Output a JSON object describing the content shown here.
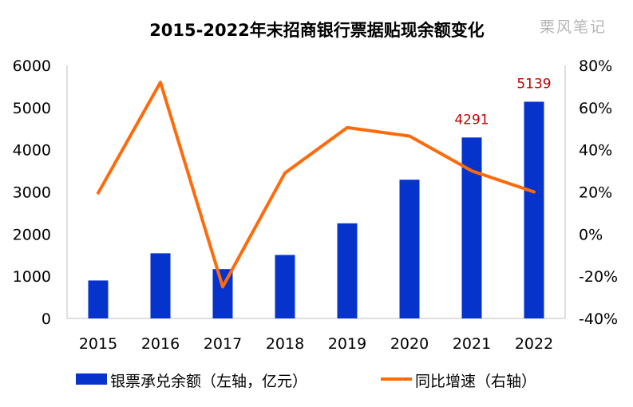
{
  "watermark": "栗风笔记",
  "chart_data": {
    "type": "bar",
    "title": "2015-2022年末招商银行票据贴现余额变化",
    "categories": [
      "2015",
      "2016",
      "2017",
      "2018",
      "2019",
      "2020",
      "2021",
      "2022"
    ],
    "series": [
      {
        "name": "银票承兑余额（左轴，亿元）",
        "type": "bar",
        "axis": "left",
        "color": "#0533cc",
        "values": [
          900,
          1545,
          1170,
          1505,
          2255,
          3290,
          4291,
          5139
        ]
      },
      {
        "name": "同比增速（右轴）",
        "type": "line",
        "axis": "right",
        "color": "#ff6a0a",
        "values": [
          0.195,
          0.72,
          -0.25,
          0.29,
          0.505,
          0.465,
          0.3,
          0.2
        ]
      }
    ],
    "data_labels": [
      {
        "category": "2021",
        "text": "4291"
      },
      {
        "category": "2022",
        "text": "5139"
      }
    ],
    "left_axis": {
      "min": 0,
      "max": 6000,
      "ticks": [
        "0",
        "1000",
        "2000",
        "3000",
        "4000",
        "5000",
        "6000"
      ]
    },
    "right_axis": {
      "min": -0.4,
      "max": 0.8,
      "ticks": [
        "-40%",
        "-20%",
        "0%",
        "20%",
        "40%",
        "60%",
        "80%"
      ]
    },
    "grid": false,
    "legend_position": "bottom"
  }
}
